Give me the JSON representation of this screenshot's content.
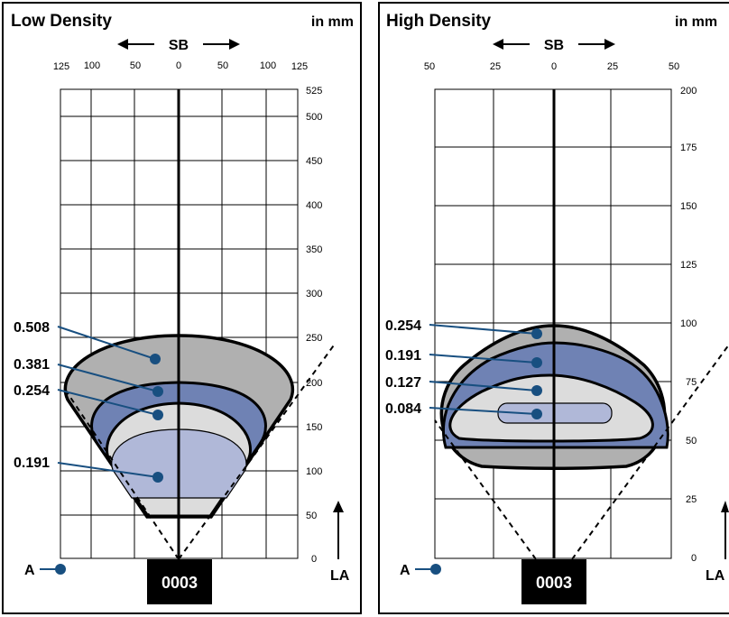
{
  "colors": {
    "zone_gray": "#b0b0b0",
    "zone_blue": "#6f82b4",
    "zone_light": "#dcdcdc",
    "zone_pale_blue": "#b0b8d8",
    "callout": "#184f80"
  },
  "panels": [
    {
      "id": "left",
      "title": "Low Density",
      "units": "in mm",
      "sb_label": "SB",
      "la_label": "LA",
      "a_label": "A",
      "badge": "0003",
      "x_ticks": [
        "125",
        "100",
        "50",
        "0",
        "50",
        "100",
        "125"
      ],
      "y_ticks": [
        "525",
        "500",
        "450",
        "400",
        "350",
        "300",
        "250",
        "200",
        "150",
        "100",
        "50",
        "0"
      ],
      "callouts": [
        "0.508",
        "0.381",
        "0.254",
        "0.191"
      ]
    },
    {
      "id": "right",
      "title": "High Density",
      "units": "in mm",
      "sb_label": "SB",
      "la_label": "LA",
      "a_label": "A",
      "badge": "0003",
      "x_ticks": [
        "50",
        "25",
        "0",
        "25",
        "50"
      ],
      "y_ticks": [
        "200",
        "175",
        "150",
        "125",
        "100",
        "75",
        "50",
        "25",
        "0"
      ],
      "callouts": [
        "0.254",
        "0.191",
        "0.127",
        "0.084"
      ]
    }
  ]
}
